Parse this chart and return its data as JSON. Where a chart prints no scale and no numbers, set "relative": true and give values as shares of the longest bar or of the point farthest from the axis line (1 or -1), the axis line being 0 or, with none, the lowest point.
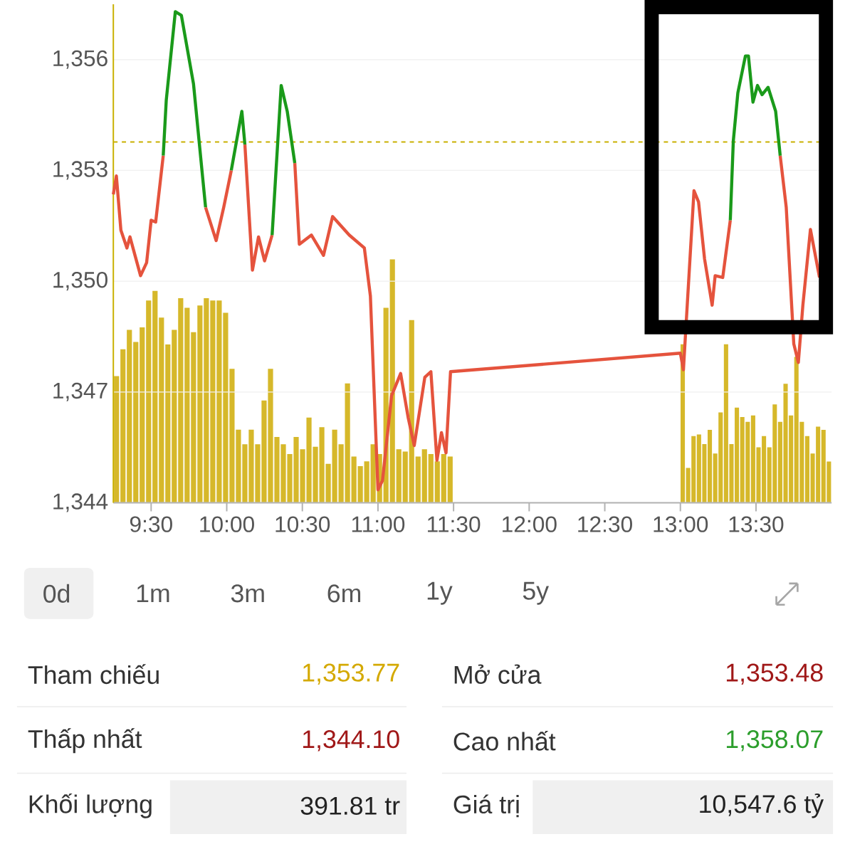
{
  "chart_data": [
    {
      "type": "line",
      "marker": "none",
      "line_style": "solid",
      "grid": "y",
      "x": [
        9.25,
        9.27,
        9.3,
        9.34,
        9.36,
        9.43,
        9.47,
        9.5,
        9.53,
        9.58,
        9.6,
        9.66,
        9.7,
        9.78,
        9.86,
        9.93,
        9.98,
        10.03,
        10.1,
        10.12,
        10.17,
        10.21,
        10.25,
        10.3,
        10.36,
        10.4,
        10.45,
        10.48,
        10.56,
        10.64,
        10.7,
        10.81,
        10.91,
        10.95,
        11.0,
        11.03,
        11.09,
        11.15,
        11.2,
        11.24,
        11.31,
        11.35,
        11.39,
        11.42,
        11.45,
        11.48,
        13.0,
        13.02,
        13.09,
        13.12,
        13.16,
        13.21,
        13.23,
        13.28,
        13.33,
        13.35,
        13.38,
        13.43,
        13.45,
        13.48,
        13.51,
        13.54,
        13.58,
        13.63,
        13.66,
        13.7,
        13.75,
        13.78,
        13.81,
        13.86,
        13.89,
        13.92
      ],
      "series": [
        {
          "color": "#e5533d",
          "values": [
            1352.35,
            1352.85,
            1351.38,
            1350.9,
            1351.2,
            1350.15,
            1350.5,
            1351.65,
            1351.6,
            1353.4,
            null,
            null,
            null,
            null,
            1352.0,
            1351.1,
            1352.0,
            1353.0,
            null,
            1353.7,
            1350.3,
            1351.2,
            1350.55,
            1351.25,
            null,
            null,
            1353.2,
            1351.0,
            1351.25,
            1350.7,
            1351.75,
            1351.25,
            1350.9,
            1349.6,
            1344.35,
            1344.6,
            1346.9,
            1347.5,
            1346.3,
            1345.55,
            1347.4,
            1347.55,
            1345.15,
            1345.9,
            1345.35,
            1347.55,
            1348.05,
            1347.6,
            1352.45,
            1352.15,
            1350.6,
            1349.35,
            1350.15,
            1350.1,
            1351.65,
            null,
            null,
            null,
            null,
            null,
            null,
            null,
            null,
            null,
            1353.4,
            1352.0,
            1348.3,
            1347.8,
            1349.35,
            1351.4,
            1350.75,
            1350.1
          ]
        },
        {
          "color": "#1a9a1a",
          "values": [
            null,
            null,
            null,
            null,
            null,
            null,
            null,
            null,
            null,
            1353.4,
            1354.9,
            1357.3,
            1357.2,
            1355.35,
            1352.0,
            null,
            null,
            1353.0,
            1354.6,
            1353.7,
            null,
            null,
            null,
            1351.25,
            1355.3,
            1354.6,
            1353.2,
            null,
            null,
            null,
            null,
            null,
            null,
            null,
            null,
            null,
            null,
            null,
            null,
            null,
            null,
            null,
            null,
            null,
            null,
            null,
            null,
            null,
            null,
            null,
            null,
            null,
            null,
            null,
            1351.65,
            1353.8,
            1355.1,
            1356.1,
            1356.1,
            1354.85,
            1355.3,
            1355.05,
            1355.25,
            1354.6,
            1353.4,
            null,
            null,
            null,
            null,
            null,
            null,
            null
          ]
        }
      ],
      "xlim": [
        9.25,
        14.0
      ],
      "xticks": [
        {
          "value": 9.5,
          "label": "9:30"
        },
        {
          "value": 10.0,
          "label": "10:00"
        },
        {
          "value": 10.5,
          "label": "10:30"
        },
        {
          "value": 11.0,
          "label": "11:00"
        },
        {
          "value": 11.5,
          "label": "11:30"
        },
        {
          "value": 12.0,
          "label": "12:00"
        },
        {
          "value": 12.5,
          "label": "12:30"
        },
        {
          "value": 13.0,
          "label": "13:00"
        },
        {
          "value": 13.5,
          "label": "13:30"
        }
      ],
      "ylim": [
        1344,
        1357.5
      ],
      "yticks": [
        {
          "value": 1344,
          "label": "1,344"
        },
        {
          "value": 1347,
          "label": "1,347"
        },
        {
          "value": 1350,
          "label": "1,350"
        },
        {
          "value": 1353,
          "label": "1,353"
        },
        {
          "value": 1356,
          "label": "1,356"
        }
      ],
      "ref_lines": [
        {
          "axis": "y",
          "value": 1353.77,
          "color": "#c9b000",
          "line_style": "dashed"
        }
      ]
    },
    {
      "type": "bar",
      "relative": true,
      "color": "#d6b82a",
      "categories": [
        null,
        null,
        null,
        null,
        null,
        null,
        null,
        null,
        null,
        null,
        null,
        null,
        null,
        null,
        null,
        null,
        null,
        null,
        null,
        null,
        null,
        null,
        null,
        null,
        null,
        null,
        null,
        null,
        null,
        null,
        null,
        null,
        null,
        null,
        null,
        null,
        null,
        null,
        null,
        null,
        null,
        null,
        null,
        null,
        null,
        null,
        null,
        null,
        null,
        null,
        null,
        null,
        null
      ],
      "values": [
        0.52,
        0.63,
        0.71,
        0.66,
        0.72,
        0.83,
        0.87,
        0.76,
        0.65,
        0.71,
        0.84,
        0.8,
        0.7,
        0.81,
        0.84,
        0.83,
        0.83,
        0.78,
        0.55,
        0.3,
        0.24,
        0.3,
        0.24,
        0.42,
        0.55,
        0.27,
        0.24,
        0.2,
        0.27,
        0.22,
        0.35,
        0.23,
        0.31,
        0.16,
        0.3,
        0.24,
        0.49,
        0.19,
        0.15,
        0.17,
        0.24,
        0.2,
        0.8,
        1.0,
        0.22,
        0.21,
        0.75,
        0.19,
        0.22,
        0.2,
        0.17,
        0.2,
        0.19
      ]
    },
    {
      "type": "bar",
      "relative": true,
      "color": "#d6b82a",
      "categories": [
        null,
        null,
        null,
        null,
        null,
        null,
        null,
        null,
        null,
        null,
        null,
        null,
        null,
        null,
        null,
        null,
        null,
        null,
        null,
        null,
        null,
        null,
        null,
        null,
        null,
        null,
        null,
        null
      ],
      "values": [
        1.0,
        0.22,
        0.42,
        0.43,
        0.37,
        0.46,
        0.31,
        0.57,
        1.0,
        0.37,
        0.6,
        0.54,
        0.51,
        0.55,
        0.35,
        0.42,
        0.35,
        0.62,
        0.51,
        0.75,
        0.55,
        0.92,
        0.51,
        0.42,
        0.31,
        0.48,
        0.46,
        0.26
      ]
    },
    {
      "type": "other",
      "annotations": [
        "0d",
        "1m",
        "3m",
        "6m",
        "1y",
        "5y",
        "Tham chiếu",
        "1,353.77",
        "Mở cửa",
        "1,353.48",
        "Thấp nhất",
        "1,344.10",
        "Cao nhất",
        "1,358.07",
        "Khối lượng",
        "391.81 tr",
        "Giá trị",
        "10,547.6 tỷ"
      ]
    }
  ]
}
